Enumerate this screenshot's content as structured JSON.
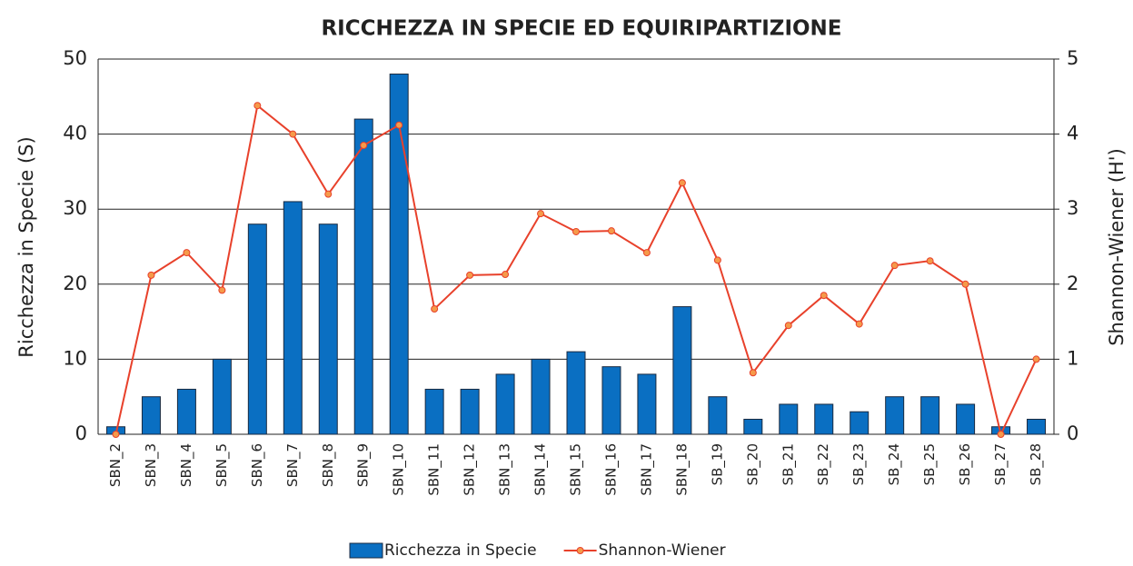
{
  "chart_data": {
    "type": "bar_line",
    "title": "RICCHEZZA IN SPECIE ED EQUIRIPARTIZIONE",
    "y_label": "Ricchezza in Specie (S)",
    "y2_label": "Shannon-Wiener (H')",
    "categories": [
      "SBN_2",
      "SBN_3",
      "SBN_4",
      "SBN_5",
      "SBN_6",
      "SBN_7",
      "SBN_8",
      "SBN_9",
      "SBN_10",
      "SBN_11",
      "SBN_12",
      "SBN_13",
      "SBN_14",
      "SBN_15",
      "SBN_16",
      "SBN_17",
      "SBN_18",
      "SB_19",
      "SB_20",
      "SB_21",
      "SB_22",
      "SB_23",
      "SB_24",
      "SB_25",
      "SB_26",
      "SB_27",
      "SB_28"
    ],
    "series": [
      {
        "name": "Ricchezza in Specie",
        "type": "bar",
        "color": "#0a6fc2",
        "values": [
          1,
          5,
          6,
          10,
          28,
          31,
          28,
          42,
          48,
          6,
          6,
          8,
          10,
          11,
          9,
          8,
          17,
          5,
          2,
          4,
          4,
          3,
          5,
          5,
          4,
          1,
          2
        ]
      },
      {
        "name": "Shannon-Wiener",
        "type": "line",
        "axis": "y2",
        "color": "#e8412b",
        "values": [
          0,
          2.12,
          2.42,
          1.92,
          4.38,
          4.0,
          3.2,
          3.85,
          4.12,
          1.67,
          2.12,
          2.13,
          2.94,
          2.7,
          2.71,
          2.42,
          3.35,
          2.32,
          0.82,
          1.45,
          1.85,
          1.47,
          2.25,
          2.31,
          2.0,
          0,
          1.0
        ]
      }
    ],
    "ylim": [
      0,
      50
    ],
    "yticks": [
      0,
      10,
      20,
      30,
      40,
      50
    ],
    "y2lim": [
      0,
      5
    ],
    "y2ticks": [
      0,
      1,
      2,
      3,
      4,
      5
    ],
    "grid": true,
    "legend": "bottom"
  }
}
